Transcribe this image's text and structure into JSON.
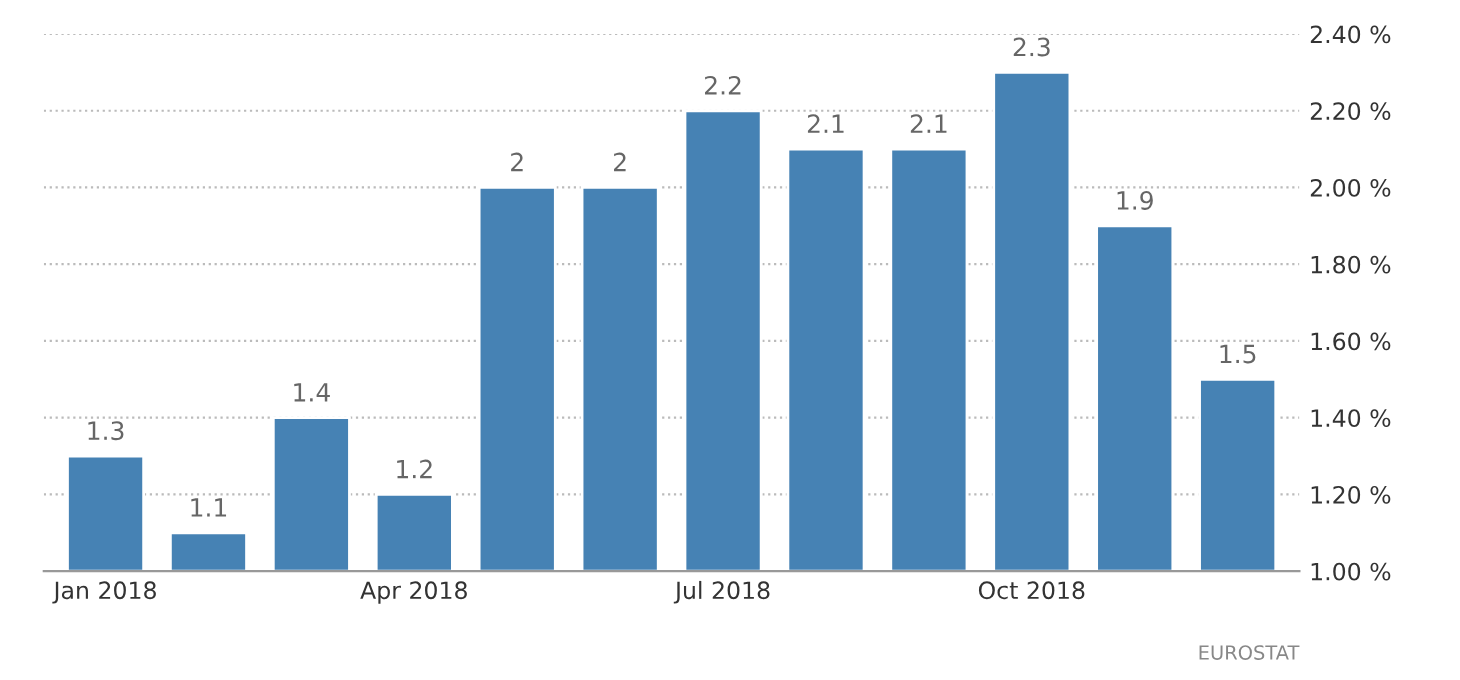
{
  "chart_data": {
    "type": "bar",
    "categories": [
      "Jan 2018",
      null,
      null,
      "Apr 2018",
      null,
      null,
      "Jul 2018",
      null,
      null,
      "Oct 2018",
      null,
      null
    ],
    "values": [
      1.3,
      1.1,
      1.4,
      1.2,
      2,
      2,
      2.2,
      2.1,
      2.1,
      2.3,
      1.9,
      1.5
    ],
    "color": "#4682b4",
    "ylim": [
      1.0,
      2.4
    ],
    "yticks": [
      {
        "value": 1.0,
        "label": "1.00 %"
      },
      {
        "value": 1.2,
        "label": "1.20 %"
      },
      {
        "value": 1.4,
        "label": "1.40 %"
      },
      {
        "value": 1.6,
        "label": "1.60 %"
      },
      {
        "value": 1.8,
        "label": "1.80 %"
      },
      {
        "value": 2.0,
        "label": "2.00 %"
      },
      {
        "value": 2.2,
        "label": "2.20 %"
      },
      {
        "value": 2.4,
        "label": "2.40 %"
      }
    ],
    "grid": "y",
    "data_labels": true,
    "annotations": [
      "EUROSTAT"
    ]
  }
}
